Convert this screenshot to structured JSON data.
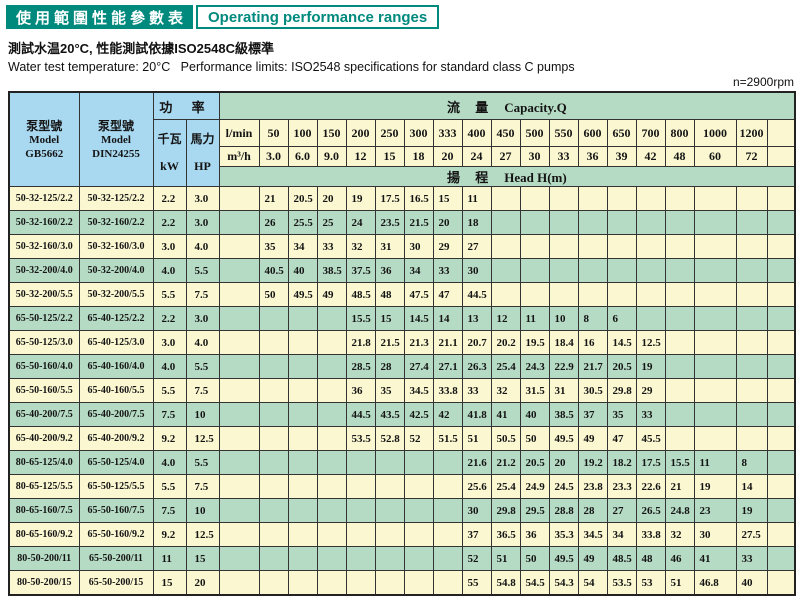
{
  "page": {
    "title_zh": "使用範圍性能參數表",
    "title_en": "Operating performance ranges",
    "subtitle_zh": "測試水温20°C, 性能測試依據ISO2548C級標準",
    "subtitle_en": "Water test temperature: 20°C   Performance limits: ISO2548 specifications for standard class C pumps",
    "rpm_note": "n=2900rpm"
  },
  "table": {
    "model_gb": {
      "zh": "泵型號",
      "line2": "Model",
      "line3": "GB5662"
    },
    "model_din": {
      "zh": "泵型號",
      "line2": "Model",
      "line3": "DIN24255"
    },
    "power_label": "功 率",
    "kw": {
      "zh": "千瓦",
      "en": "kW"
    },
    "hp": {
      "zh": "馬力",
      "en": "HP"
    },
    "capacity": {
      "zh": "流 量",
      "en": "Capacity.Q"
    },
    "head": {
      "zh": "揚 程",
      "en": "Head H(m)"
    },
    "lmin_label": "l/min",
    "m3h_label": "m³/h",
    "flow_lmin": [
      "50",
      "100",
      "150",
      "200",
      "250",
      "300",
      "333",
      "400",
      "450",
      "500",
      "550",
      "600",
      "650",
      "700",
      "800",
      "1000",
      "1200"
    ],
    "flow_m3h": [
      "3.0",
      "6.0",
      "9.0",
      "12",
      "15",
      "18",
      "20",
      "24",
      "27",
      "30",
      "33",
      "36",
      "39",
      "42",
      "48",
      "60",
      "72"
    ],
    "rows": [
      {
        "gb": "50-32-125/2.2",
        "din": "50-32-125/2.2",
        "kw": "2.2",
        "hp": "3.0",
        "start": 0,
        "heads": [
          "21",
          "20.5",
          "20",
          "19",
          "17.5",
          "16.5",
          "15",
          "11"
        ]
      },
      {
        "gb": "50-32-160/2.2",
        "din": "50-32-160/2.2",
        "kw": "2.2",
        "hp": "3.0",
        "start": 0,
        "heads": [
          "26",
          "25.5",
          "25",
          "24",
          "23.5",
          "21.5",
          "20",
          "18"
        ]
      },
      {
        "gb": "50-32-160/3.0",
        "din": "50-32-160/3.0",
        "kw": "3.0",
        "hp": "4.0",
        "start": 0,
        "heads": [
          "35",
          "34",
          "33",
          "32",
          "31",
          "30",
          "29",
          "27"
        ]
      },
      {
        "gb": "50-32-200/4.0",
        "din": "50-32-200/4.0",
        "kw": "4.0",
        "hp": "5.5",
        "start": 0,
        "heads": [
          "40.5",
          "40",
          "38.5",
          "37.5",
          "36",
          "34",
          "33",
          "30"
        ]
      },
      {
        "gb": "50-32-200/5.5",
        "din": "50-32-200/5.5",
        "kw": "5.5",
        "hp": "7.5",
        "start": 0,
        "heads": [
          "50",
          "49.5",
          "49",
          "48.5",
          "48",
          "47.5",
          "47",
          "44.5"
        ]
      },
      {
        "gb": "65-50-125/2.2",
        "din": "65-40-125/2.2",
        "kw": "2.2",
        "hp": "3.0",
        "start": 3,
        "heads": [
          "15.5",
          "15",
          "14.5",
          "14",
          "13",
          "12",
          "11",
          "10",
          "8",
          "6"
        ]
      },
      {
        "gb": "65-50-125/3.0",
        "din": "65-40-125/3.0",
        "kw": "3.0",
        "hp": "4.0",
        "start": 3,
        "heads": [
          "21.8",
          "21.5",
          "21.3",
          "21.1",
          "20.7",
          "20.2",
          "19.5",
          "18.4",
          "16",
          "14.5",
          "12.5"
        ]
      },
      {
        "gb": "65-50-160/4.0",
        "din": "65-40-160/4.0",
        "kw": "4.0",
        "hp": "5.5",
        "start": 3,
        "heads": [
          "28.5",
          "28",
          "27.4",
          "27.1",
          "26.3",
          "25.4",
          "24.3",
          "22.9",
          "21.7",
          "20.5",
          "19"
        ]
      },
      {
        "gb": "65-50-160/5.5",
        "din": "65-40-160/5.5",
        "kw": "5.5",
        "hp": "7.5",
        "start": 3,
        "heads": [
          "36",
          "35",
          "34.5",
          "33.8",
          "33",
          "32",
          "31.5",
          "31",
          "30.5",
          "29.8",
          "29"
        ]
      },
      {
        "gb": "65-40-200/7.5",
        "din": "65-40-200/7.5",
        "kw": "7.5",
        "hp": "10",
        "start": 3,
        "heads": [
          "44.5",
          "43.5",
          "42.5",
          "42",
          "41.8",
          "41",
          "40",
          "38.5",
          "37",
          "35",
          "33"
        ]
      },
      {
        "gb": "65-40-200/9.2",
        "din": "65-40-200/9.2",
        "kw": "9.2",
        "hp": "12.5",
        "start": 3,
        "heads": [
          "53.5",
          "52.8",
          "52",
          "51.5",
          "51",
          "50.5",
          "50",
          "49.5",
          "49",
          "47",
          "45.5"
        ]
      },
      {
        "gb": "80-65-125/4.0",
        "din": "65-50-125/4.0",
        "kw": "4.0",
        "hp": "5.5",
        "start": 7,
        "heads": [
          "21.6",
          "21.2",
          "20.5",
          "20",
          "19.2",
          "18.2",
          "17.5",
          "15.5",
          "11",
          "8"
        ]
      },
      {
        "gb": "80-65-125/5.5",
        "din": "65-50-125/5.5",
        "kw": "5.5",
        "hp": "7.5",
        "start": 7,
        "heads": [
          "25.6",
          "25.4",
          "24.9",
          "24.5",
          "23.8",
          "23.3",
          "22.6",
          "21",
          "19",
          "14"
        ]
      },
      {
        "gb": "80-65-160/7.5",
        "din": "65-50-160/7.5",
        "kw": "7.5",
        "hp": "10",
        "start": 7,
        "heads": [
          "30",
          "29.8",
          "29.5",
          "28.8",
          "28",
          "27",
          "26.5",
          "24.8",
          "23",
          "19"
        ]
      },
      {
        "gb": "80-65-160/9.2",
        "din": "65-50-160/9.2",
        "kw": "9.2",
        "hp": "12.5",
        "start": 7,
        "heads": [
          "37",
          "36.5",
          "36",
          "35.3",
          "34.5",
          "34",
          "33.8",
          "32",
          "30",
          "27.5"
        ]
      },
      {
        "gb": "80-50-200/11",
        "din": "65-50-200/11",
        "kw": "11",
        "hp": "15",
        "start": 7,
        "heads": [
          "52",
          "51",
          "50",
          "49.5",
          "49",
          "48.5",
          "48",
          "46",
          "41",
          "33"
        ]
      },
      {
        "gb": "80-50-200/15",
        "din": "65-50-200/15",
        "kw": "15",
        "hp": "20",
        "start": 7,
        "heads": [
          "55",
          "54.8",
          "54.5",
          "54.3",
          "54",
          "53.5",
          "53",
          "51",
          "46.8",
          "40"
        ]
      }
    ]
  },
  "colors": {
    "teal": "#00897d",
    "header_blue": "#a9d9f1",
    "header_green": "#b6dbc4",
    "row_cream": "#faf7d1",
    "row_green": "#b6dbc4"
  }
}
